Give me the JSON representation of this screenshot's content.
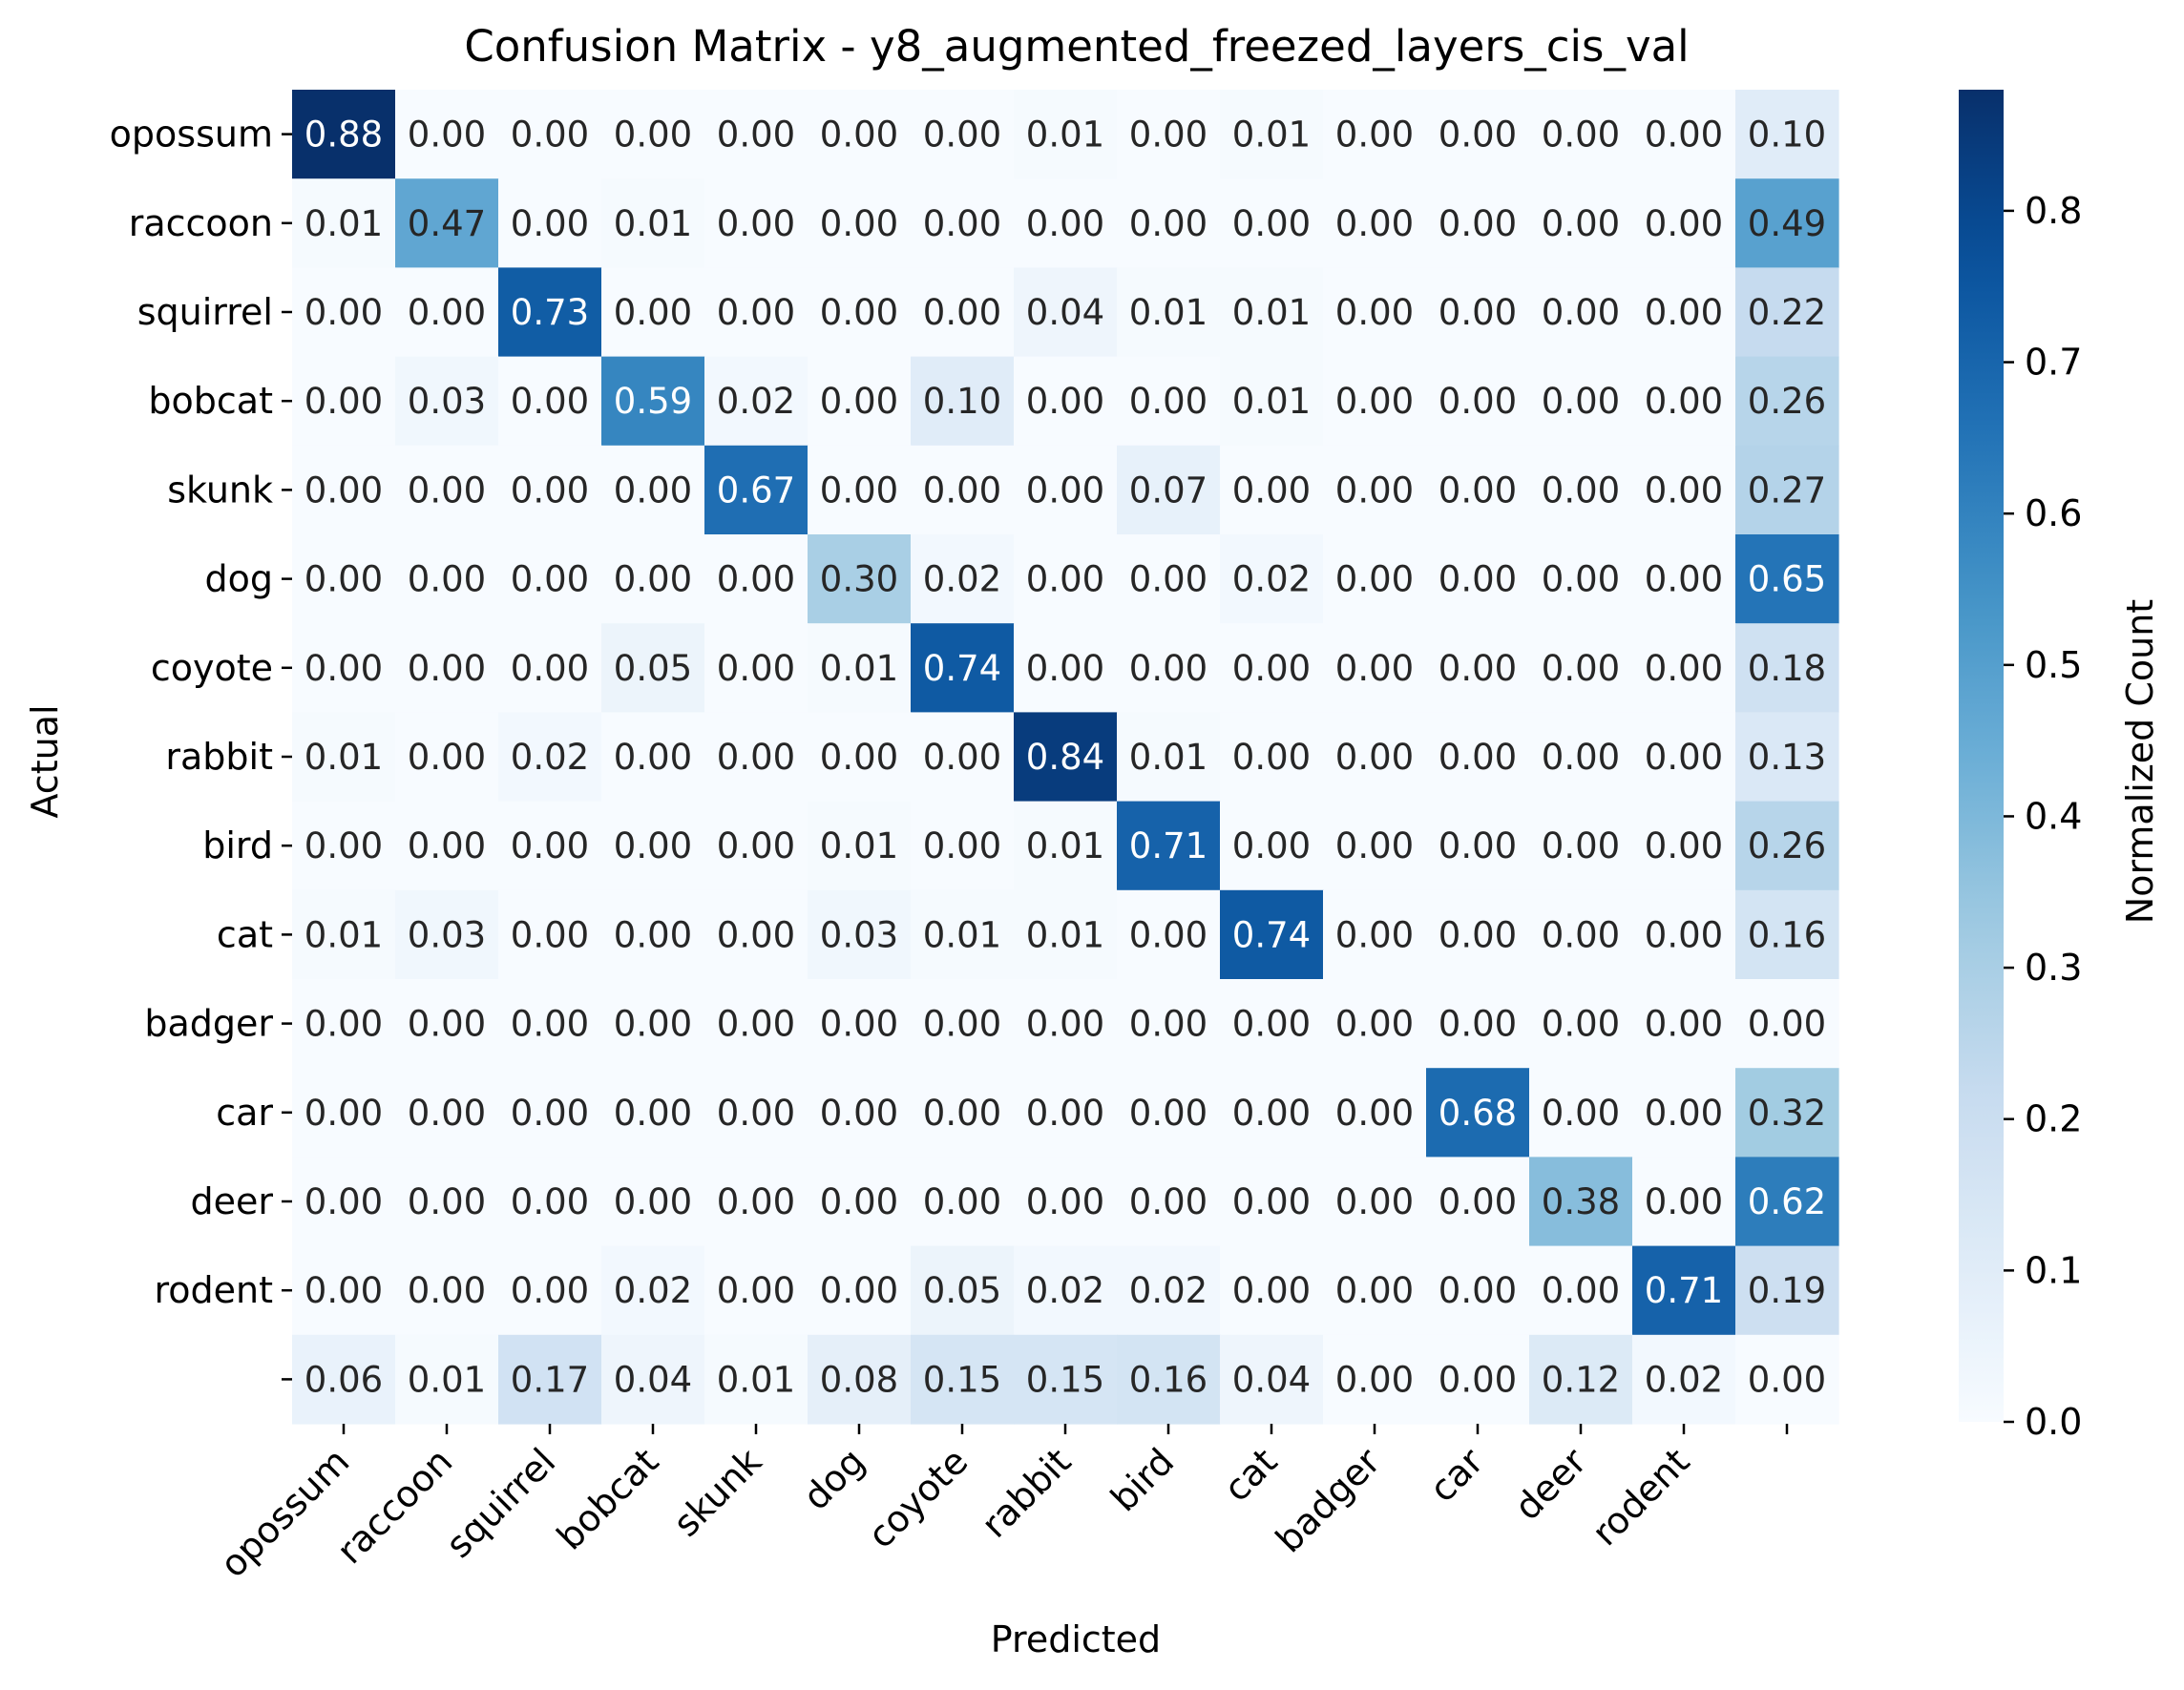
{
  "chart_data": {
    "type": "heatmap",
    "title": "Confusion Matrix - y8_augmented_freezed_layers_cis_val",
    "xlabel": "Predicted",
    "ylabel": "Actual",
    "colorbar_label": "Normalized Count",
    "colormap": "Blues",
    "x_categories": [
      "opossum",
      "raccoon",
      "squirrel",
      "bobcat",
      "skunk",
      "dog",
      "coyote",
      "rabbit",
      "bird",
      "cat",
      "badger",
      "car",
      "deer",
      "rodent",
      ""
    ],
    "y_categories": [
      "opossum",
      "raccoon",
      "squirrel",
      "bobcat",
      "skunk",
      "dog",
      "coyote",
      "rabbit",
      "bird",
      "cat",
      "badger",
      "car",
      "deer",
      "rodent",
      ""
    ],
    "values": [
      [
        0.88,
        0.0,
        0.0,
        0.0,
        0.0,
        0.0,
        0.0,
        0.01,
        0.0,
        0.01,
        0.0,
        0.0,
        0.0,
        0.0,
        0.1
      ],
      [
        0.01,
        0.47,
        0.0,
        0.01,
        0.0,
        0.0,
        0.0,
        0.0,
        0.0,
        0.0,
        0.0,
        0.0,
        0.0,
        0.0,
        0.49
      ],
      [
        0.0,
        0.0,
        0.73,
        0.0,
        0.0,
        0.0,
        0.0,
        0.04,
        0.01,
        0.01,
        0.0,
        0.0,
        0.0,
        0.0,
        0.22
      ],
      [
        0.0,
        0.03,
        0.0,
        0.59,
        0.02,
        0.0,
        0.1,
        0.0,
        0.0,
        0.01,
        0.0,
        0.0,
        0.0,
        0.0,
        0.26
      ],
      [
        0.0,
        0.0,
        0.0,
        0.0,
        0.67,
        0.0,
        0.0,
        0.0,
        0.07,
        0.0,
        0.0,
        0.0,
        0.0,
        0.0,
        0.27
      ],
      [
        0.0,
        0.0,
        0.0,
        0.0,
        0.0,
        0.3,
        0.02,
        0.0,
        0.0,
        0.02,
        0.0,
        0.0,
        0.0,
        0.0,
        0.65
      ],
      [
        0.0,
        0.0,
        0.0,
        0.05,
        0.0,
        0.01,
        0.74,
        0.0,
        0.0,
        0.0,
        0.0,
        0.0,
        0.0,
        0.0,
        0.18
      ],
      [
        0.01,
        0.0,
        0.02,
        0.0,
        0.0,
        0.0,
        0.0,
        0.84,
        0.01,
        0.0,
        0.0,
        0.0,
        0.0,
        0.0,
        0.13
      ],
      [
        0.0,
        0.0,
        0.0,
        0.0,
        0.0,
        0.01,
        0.0,
        0.01,
        0.71,
        0.0,
        0.0,
        0.0,
        0.0,
        0.0,
        0.26
      ],
      [
        0.01,
        0.03,
        0.0,
        0.0,
        0.0,
        0.03,
        0.01,
        0.01,
        0.0,
        0.74,
        0.0,
        0.0,
        0.0,
        0.0,
        0.16
      ],
      [
        0.0,
        0.0,
        0.0,
        0.0,
        0.0,
        0.0,
        0.0,
        0.0,
        0.0,
        0.0,
        0.0,
        0.0,
        0.0,
        0.0,
        0.0
      ],
      [
        0.0,
        0.0,
        0.0,
        0.0,
        0.0,
        0.0,
        0.0,
        0.0,
        0.0,
        0.0,
        0.0,
        0.68,
        0.0,
        0.0,
        0.32
      ],
      [
        0.0,
        0.0,
        0.0,
        0.0,
        0.0,
        0.0,
        0.0,
        0.0,
        0.0,
        0.0,
        0.0,
        0.0,
        0.38,
        0.0,
        0.62
      ],
      [
        0.0,
        0.0,
        0.0,
        0.02,
        0.0,
        0.0,
        0.05,
        0.02,
        0.02,
        0.0,
        0.0,
        0.0,
        0.0,
        0.71,
        0.19
      ],
      [
        0.06,
        0.01,
        0.17,
        0.04,
        0.01,
        0.08,
        0.15,
        0.15,
        0.16,
        0.04,
        0.0,
        0.0,
        0.12,
        0.02,
        0.0
      ]
    ],
    "colorbar_range": [
      0.0,
      0.88
    ],
    "colorbar_ticks": [
      "0.0",
      "0.1",
      "0.2",
      "0.3",
      "0.4",
      "0.5",
      "0.6",
      "0.7",
      "0.8"
    ],
    "grid": false
  }
}
